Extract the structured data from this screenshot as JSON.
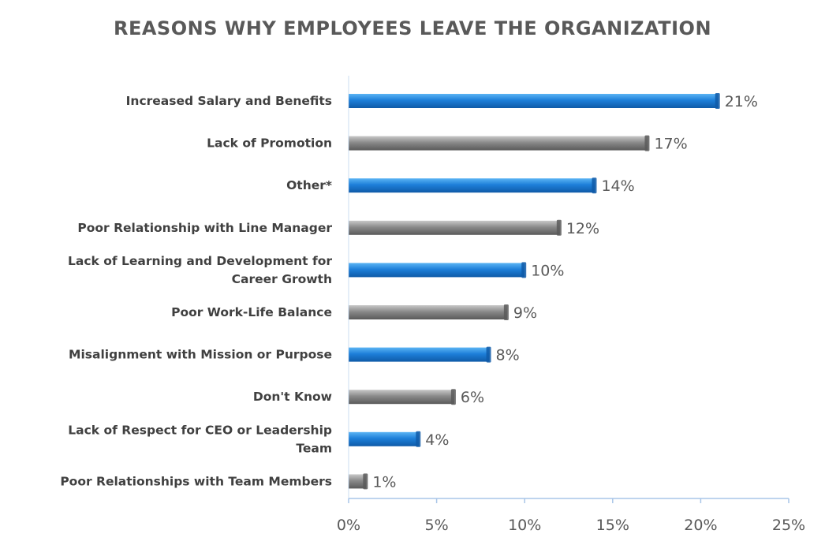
{
  "chart_data": {
    "type": "bar",
    "orientation": "horizontal",
    "title": "REASONS WHY EMPLOYEES LEAVE THE ORGANIZATION",
    "categories": [
      [
        "Increased Salary and Benefits"
      ],
      [
        "Lack of Promotion"
      ],
      [
        "Other*"
      ],
      [
        "Poor Relationship with Line Manager"
      ],
      [
        "Lack of Learning and Development for",
        "Career Growth"
      ],
      [
        "Poor Work-Life Balance"
      ],
      [
        "Misalignment with Mission or Purpose"
      ],
      [
        "Don't Know"
      ],
      [
        "Lack of Respect for CEO or Leadership",
        "Team"
      ],
      [
        "Poor Relationships with Team Members"
      ]
    ],
    "values": [
      21,
      17,
      14,
      12,
      10,
      9,
      8,
      6,
      4,
      1
    ],
    "value_labels": [
      "21%",
      "17%",
      "14%",
      "12%",
      "10%",
      "9%",
      "8%",
      "6%",
      "4%",
      "1%"
    ],
    "bar_colors": [
      "blue",
      "gray",
      "blue",
      "gray",
      "blue",
      "gray",
      "blue",
      "gray",
      "blue",
      "gray"
    ],
    "xlim": [
      0,
      25
    ],
    "xticks": [
      0,
      5,
      10,
      15,
      20,
      25
    ],
    "xtick_labels": [
      "0%",
      "5%",
      "10%",
      "15%",
      "20%",
      "25%"
    ],
    "xlabel": "",
    "ylabel": "",
    "grid": false,
    "legend": "none"
  },
  "colors": {
    "blue_light": "#5bb4f4",
    "blue": "#1d7fd9",
    "blue_dark": "#0f5aa8",
    "gray_light": "#c8c8c8",
    "gray": "#8a8a8a",
    "gray_dark": "#5a5a5a",
    "axis": "#a9c6e8",
    "title": "#595959"
  }
}
